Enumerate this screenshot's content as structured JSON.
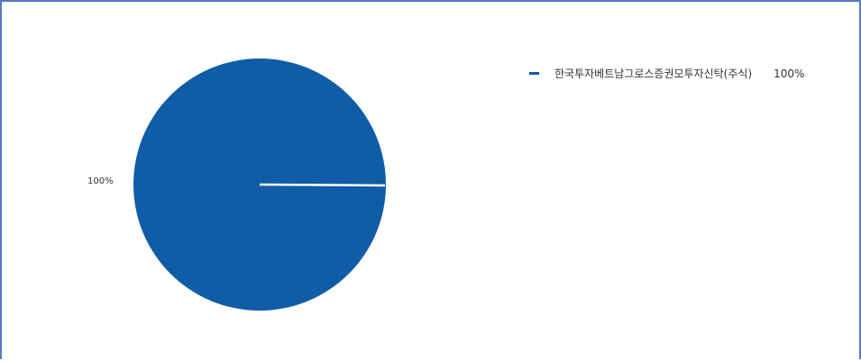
{
  "chart_data": {
    "type": "pie",
    "slices": [
      {
        "label": "한국투자베트남그로스증권모투자신탁(주식)",
        "value": 100,
        "percent_label": "100%",
        "color": "#105ca6"
      }
    ],
    "legend_position": "top-right"
  }
}
